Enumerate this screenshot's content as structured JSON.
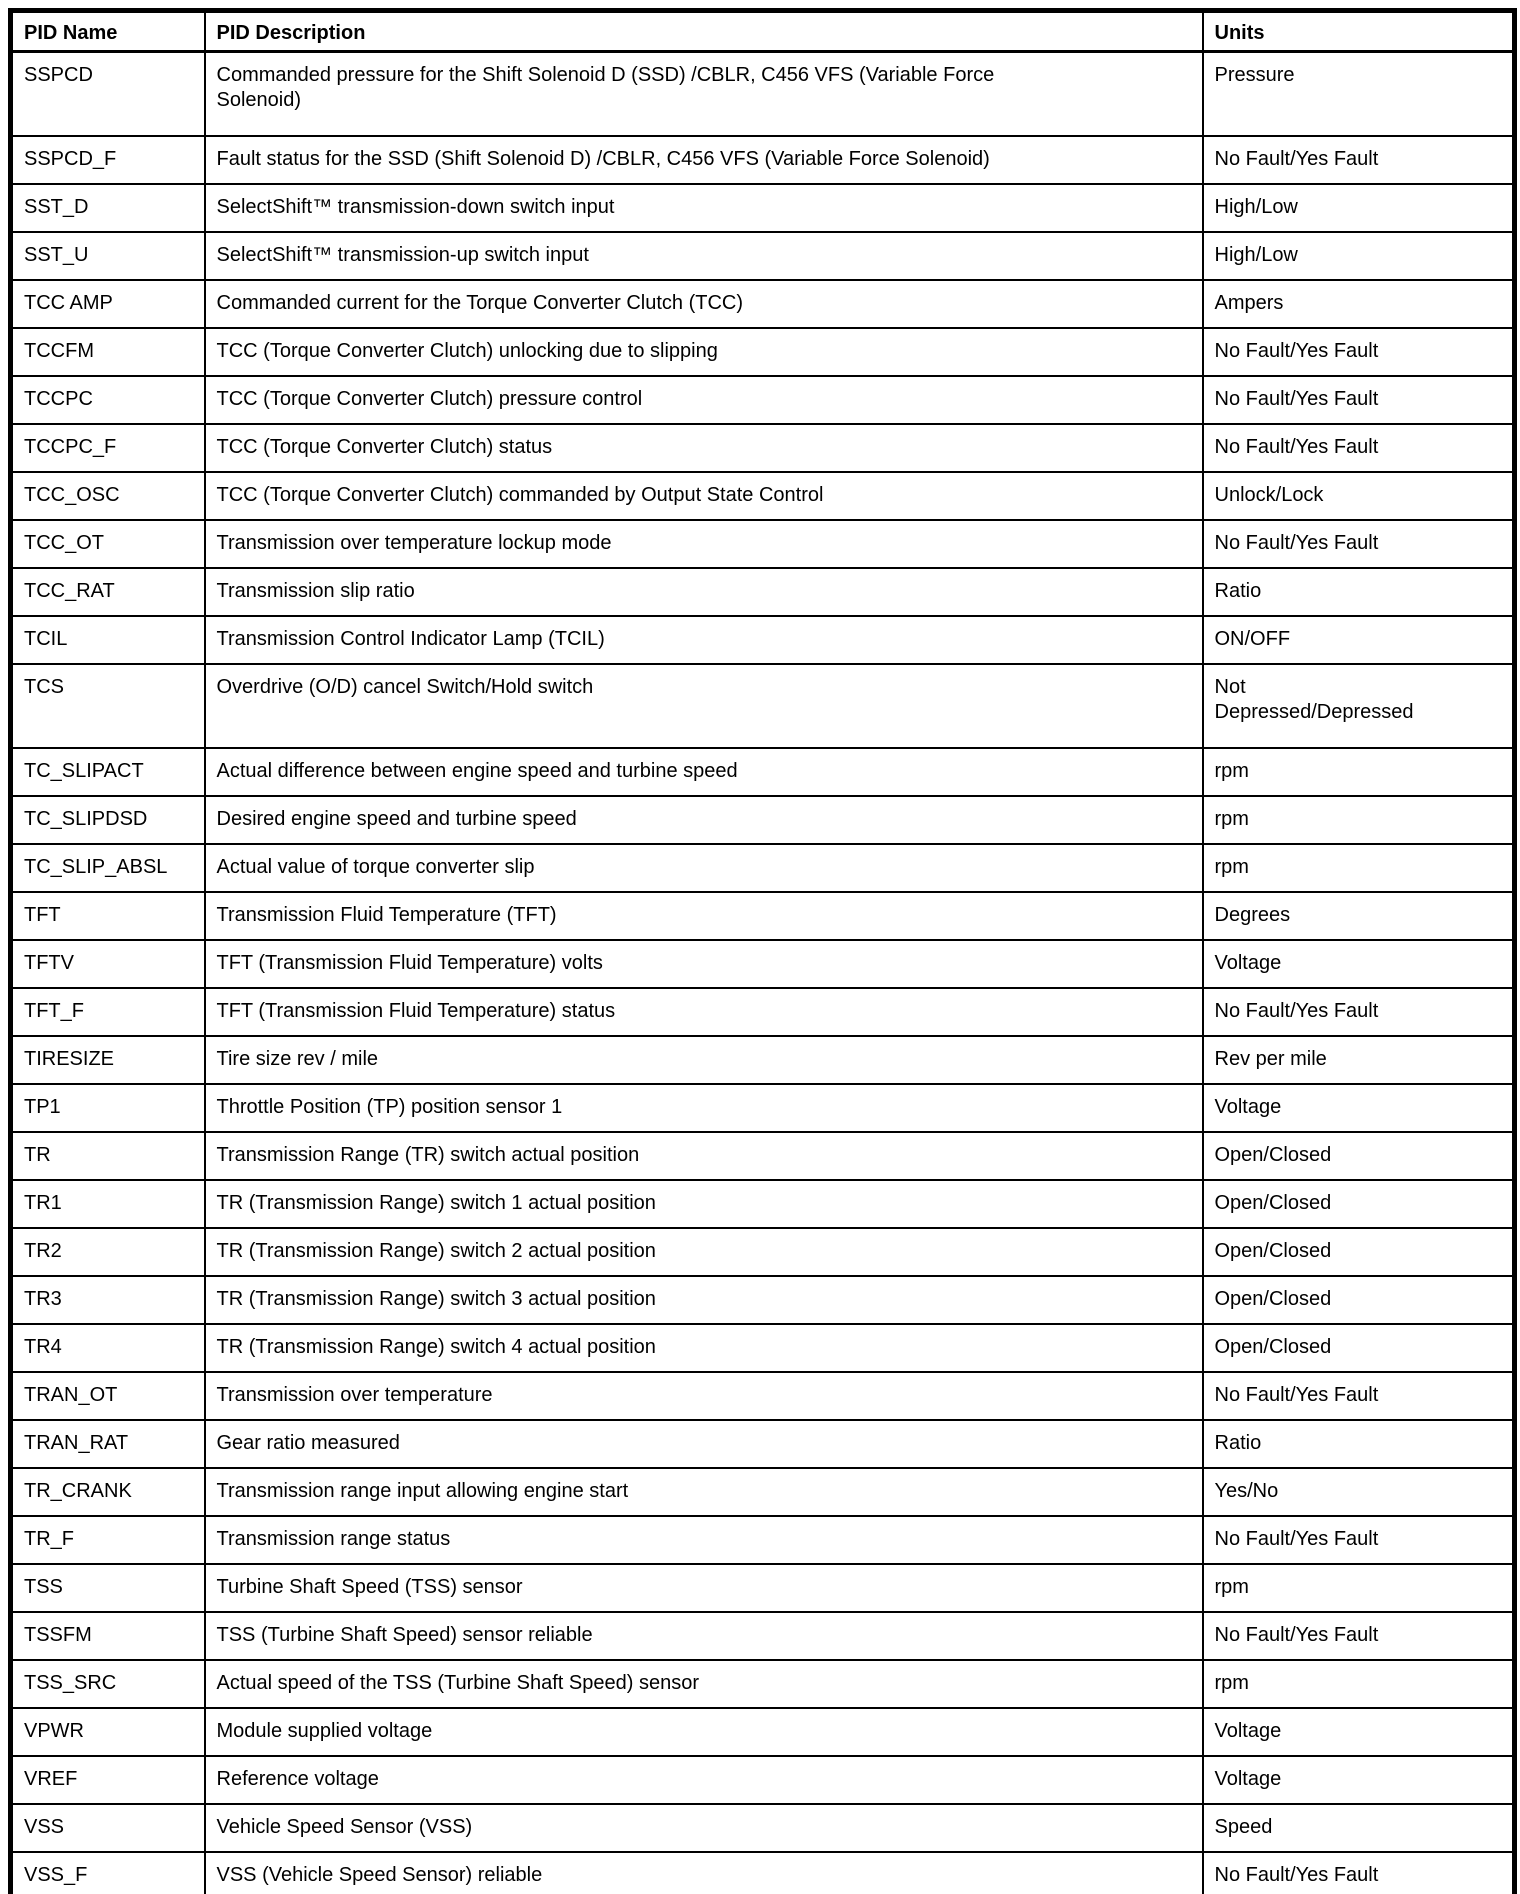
{
  "table": {
    "columns": [
      "PID Name",
      "PID Description",
      "Units"
    ],
    "rows": [
      {
        "name": "SSPCD",
        "description": "Commanded pressure for the Shift Solenoid D (SSD) /CBLR, C456 VFS (Variable Force\nSolenoid)",
        "units": "Pressure"
      },
      {
        "name": "SSPCD_F",
        "description": "Fault status for the SSD (Shift Solenoid D) /CBLR, C456 VFS (Variable Force Solenoid)",
        "units": "No Fault/Yes Fault"
      },
      {
        "name": "SST_D",
        "description": "SelectShift™ transmission-down switch input",
        "units": "High/Low"
      },
      {
        "name": "SST_U",
        "description": "SelectShift™ transmission-up switch input",
        "units": "High/Low"
      },
      {
        "name": "TCC AMP",
        "description": "Commanded current for the Torque Converter Clutch (TCC)",
        "units": "Ampers"
      },
      {
        "name": "TCCFM",
        "description": "TCC (Torque Converter Clutch) unlocking due to slipping",
        "units": "No Fault/Yes Fault"
      },
      {
        "name": "TCCPC",
        "description": "TCC (Torque Converter Clutch) pressure control",
        "units": "No Fault/Yes Fault"
      },
      {
        "name": "TCCPC_F",
        "description": "TCC (Torque Converter Clutch) status",
        "units": "No Fault/Yes Fault"
      },
      {
        "name": "TCC_OSC",
        "description": "TCC (Torque Converter Clutch) commanded by Output State Control",
        "units": "Unlock/Lock"
      },
      {
        "name": "TCC_OT",
        "description": "Transmission over temperature lockup mode",
        "units": "No Fault/Yes Fault"
      },
      {
        "name": "TCC_RAT",
        "description": "Transmission slip ratio",
        "units": "Ratio"
      },
      {
        "name": "TCIL",
        "description": "Transmission Control Indicator Lamp (TCIL)",
        "units": "ON/OFF"
      },
      {
        "name": "TCS",
        "description": "Overdrive (O/D) cancel Switch/Hold switch",
        "units": "Not\nDepressed/Depressed"
      },
      {
        "name": "TC_SLIPACT",
        "description": "Actual difference between engine speed and turbine speed",
        "units": "rpm"
      },
      {
        "name": "TC_SLIPDSD",
        "description": "Desired engine speed and turbine speed",
        "units": "rpm"
      },
      {
        "name": "TC_SLIP_ABSL",
        "description": "Actual value of torque converter slip",
        "units": "rpm"
      },
      {
        "name": "TFT",
        "description": "Transmission Fluid Temperature (TFT)",
        "units": "Degrees"
      },
      {
        "name": "TFTV",
        "description": "TFT (Transmission Fluid Temperature) volts",
        "units": "Voltage"
      },
      {
        "name": "TFT_F",
        "description": "TFT (Transmission Fluid Temperature) status",
        "units": "No Fault/Yes Fault"
      },
      {
        "name": "TIRESIZE",
        "description": "Tire size rev / mile",
        "units": "Rev per mile"
      },
      {
        "name": "TP1",
        "description": "Throttle Position (TP) position sensor 1",
        "units": "Voltage"
      },
      {
        "name": "TR",
        "description": "Transmission Range (TR) switch actual position",
        "units": "Open/Closed"
      },
      {
        "name": "TR1",
        "description": "TR (Transmission Range) switch 1 actual position",
        "units": "Open/Closed"
      },
      {
        "name": "TR2",
        "description": "TR (Transmission Range) switch 2 actual position",
        "units": "Open/Closed"
      },
      {
        "name": "TR3",
        "description": "TR (Transmission Range) switch 3 actual position",
        "units": "Open/Closed"
      },
      {
        "name": "TR4",
        "description": "TR (Transmission Range) switch 4 actual position",
        "units": "Open/Closed"
      },
      {
        "name": "TRAN_OT",
        "description": "Transmission over temperature",
        "units": "No Fault/Yes Fault"
      },
      {
        "name": "TRAN_RAT",
        "description": "Gear ratio measured",
        "units": "Ratio"
      },
      {
        "name": "TR_CRANK",
        "description": "Transmission range input allowing engine start",
        "units": "Yes/No"
      },
      {
        "name": "TR_F",
        "description": "Transmission range status",
        "units": "No Fault/Yes Fault"
      },
      {
        "name": "TSS",
        "description": "Turbine Shaft Speed (TSS) sensor",
        "units": "rpm"
      },
      {
        "name": "TSSFM",
        "description": "TSS (Turbine Shaft Speed) sensor reliable",
        "units": "No Fault/Yes Fault"
      },
      {
        "name": "TSS_SRC",
        "description": "Actual speed of the TSS (Turbine Shaft Speed) sensor",
        "units": "rpm"
      },
      {
        "name": "VPWR",
        "description": "Module supplied voltage",
        "units": "Voltage"
      },
      {
        "name": "VREF",
        "description": "Reference voltage",
        "units": "Voltage"
      },
      {
        "name": "VSS",
        "description": "Vehicle Speed Sensor (VSS)",
        "units": "Speed"
      },
      {
        "name": "VSS_F",
        "description": "VSS (Vehicle Speed Sensor) reliable",
        "units": "No Fault/Yes Fault"
      }
    ]
  }
}
